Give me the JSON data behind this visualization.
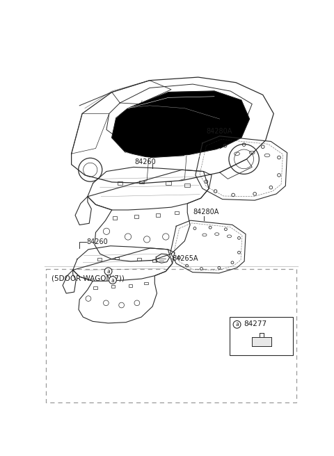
{
  "bg_color": "#ffffff",
  "line_color": "#2a2a2a",
  "label_color": "#1a1a1a",
  "fig_width": 4.8,
  "fig_height": 6.56,
  "dpi": 100,
  "wagon_label": "(5DOOR WAGON(7))",
  "parts": {
    "84260": "84260",
    "84280A": "84280A",
    "84265A": "84265A",
    "84277": "84277"
  }
}
